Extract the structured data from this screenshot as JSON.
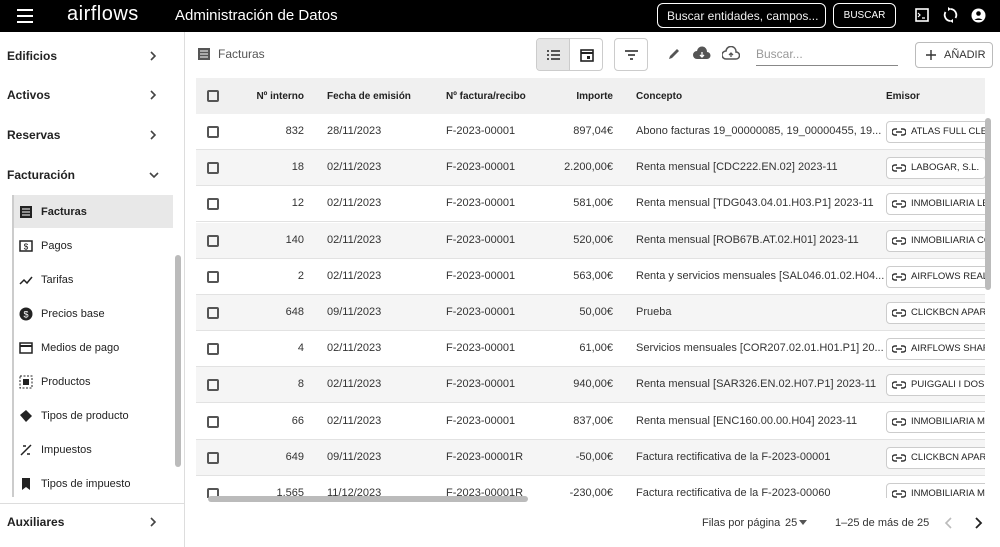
{
  "header": {
    "logo": "airflows",
    "title": "Administración de Datos",
    "search_placeholder": "Buscar entidades, campos...",
    "search_button": "BUSCAR"
  },
  "sidebar": {
    "sections": [
      "Edificios",
      "Activos",
      "Reservas",
      "Facturación"
    ],
    "items": [
      "Facturas",
      "Pagos",
      "Tarifas",
      "Precios base",
      "Medios de pago",
      "Productos",
      "Tipos de producto",
      "Impuestos",
      "Tipos de impuesto"
    ],
    "bottom": "Auxiliares"
  },
  "toolbar": {
    "title": "Facturas",
    "search_placeholder": "Buscar...",
    "add_button": "AÑADIR"
  },
  "table": {
    "columns": [
      "Nº interno",
      "Fecha de emisión",
      "Nº factura/recibo",
      "Importe",
      "Concepto",
      "Emisor"
    ],
    "rows": [
      [
        "832",
        "28/11/2023",
        "F-2023-00001",
        "897,04€",
        "Abono facturas 19_00000085, 19_00000455, 19...",
        "ATLAS FULL CLE"
      ],
      [
        "18",
        "02/11/2023",
        "F-2023-00001",
        "2.200,00€",
        "Renta mensual [CDC222.EN.02] 2023-11",
        "LABOGAR, S.L."
      ],
      [
        "12",
        "02/11/2023",
        "F-2023-00001",
        "581,00€",
        "Renta mensual [TDG043.04.01.H03.P1] 2023-11",
        "INMOBILIARIA LE"
      ],
      [
        "140",
        "02/11/2023",
        "F-2023-00001",
        "520,00€",
        "Renta mensual [ROB67B.AT.02.H01] 2023-11",
        "INMOBILIARIA CO"
      ],
      [
        "2",
        "02/11/2023",
        "F-2023-00001",
        "563,00€",
        "Renta y servicios mensuales [SAL046.01.02.H04...",
        "AIRFLOWS REAL"
      ],
      [
        "648",
        "09/11/2023",
        "F-2023-00001",
        "50,00€",
        "Prueba",
        "CLICKBCN APAR"
      ],
      [
        "4",
        "02/11/2023",
        "F-2023-00001",
        "61,00€",
        "Servicios mensuales [COR207.02.01.H01.P1] 20...",
        "AIRFLOWS SHAR"
      ],
      [
        "8",
        "02/11/2023",
        "F-2023-00001",
        "940,00€",
        "Renta mensual [SAR326.EN.02.H07.P1] 2023-11",
        "PUIGGALI I DOS"
      ],
      [
        "66",
        "02/11/2023",
        "F-2023-00001",
        "837,00€",
        "Renta mensual [ENC160.00.00.H04] 2023-11",
        "INMOBILIARIA M"
      ],
      [
        "649",
        "09/11/2023",
        "F-2023-00001R",
        "-50,00€",
        "Factura rectificativa de la F-2023-00001",
        "CLICKBCN APAR"
      ],
      [
        "1.565",
        "11/12/2023",
        "F-2023-00001R",
        "-230,00€",
        "Factura rectificativa de la F-2023-00060",
        "INMOBILIARIA M"
      ]
    ]
  },
  "pagination": {
    "rows_per_page_label": "Filas por página",
    "rows_per_page": "25",
    "range": "1–25 de más de 25"
  }
}
